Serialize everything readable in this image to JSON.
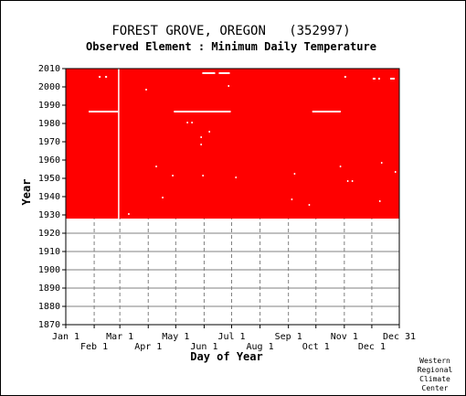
{
  "colors": {
    "record": "#ff0000",
    "missing": "#ffffff",
    "grid": "#808080",
    "background": "#ffffff"
  },
  "credit_lines": [
    "Western",
    "Regional",
    "Climate",
    "Center"
  ],
  "chart_data": {
    "type": "heatmap",
    "title": "FOREST GROVE, OREGON   (352997)",
    "subtitle": "Observed Element : Minimum Daily Temperature",
    "xlabel": "Day of Year",
    "ylabel": "Year",
    "xlim": [
      "Jan 1",
      "Dec 31"
    ],
    "ylim": [
      1870,
      2010
    ],
    "y_ticks": [
      1870,
      1880,
      1890,
      1900,
      1910,
      1920,
      1930,
      1940,
      1950,
      1960,
      1970,
      1980,
      1990,
      2000,
      2010
    ],
    "x_ticks_upper": [
      {
        "label": "Jan 1",
        "day": 1
      },
      {
        "label": "Mar 1",
        "day": 60
      },
      {
        "label": "May 1",
        "day": 121
      },
      {
        "label": "Jul 1",
        "day": 182
      },
      {
        "label": "Sep 1",
        "day": 244
      },
      {
        "label": "Nov 1",
        "day": 305
      },
      {
        "label": "Dec 31",
        "day": 365
      }
    ],
    "x_ticks_lower": [
      {
        "label": "Feb 1",
        "day": 32
      },
      {
        "label": "Apr 1",
        "day": 91
      },
      {
        "label": "Jun 1",
        "day": 152
      },
      {
        "label": "Aug 1",
        "day": 213
      },
      {
        "label": "Oct 1",
        "day": 274
      },
      {
        "label": "Dec 1",
        "day": 335
      }
    ],
    "data_coverage": {
      "year_start": 1928,
      "year_end": 2010,
      "day_start": 1,
      "day_end": 365
    },
    "missing_periods": [
      {
        "day_start": 58,
        "day_end": 59,
        "year_start": 1928,
        "year_end": 2010
      },
      {
        "day_start": 26,
        "day_end": 58,
        "year_start": 1986,
        "year_end": 1987
      },
      {
        "day_start": 119,
        "day_end": 181,
        "year_start": 1986,
        "year_end": 1987
      },
      {
        "day_start": 270,
        "day_end": 301,
        "year_start": 1986,
        "year_end": 1987
      },
      {
        "day_start": 150,
        "day_end": 164,
        "year_start": 2007,
        "year_end": 2008
      },
      {
        "day_start": 168,
        "day_end": 180,
        "year_start": 2007,
        "year_end": 2008
      },
      {
        "day_start": 37,
        "day_end": 39,
        "year_start": 2005,
        "year_end": 2006
      },
      {
        "day_start": 44,
        "day_end": 46,
        "year_start": 2005,
        "year_end": 2006
      },
      {
        "day_start": 305,
        "day_end": 307,
        "year_start": 2005,
        "year_end": 2006
      },
      {
        "day_start": 336,
        "day_end": 339,
        "year_start": 2004,
        "year_end": 2005
      },
      {
        "day_start": 342,
        "day_end": 344,
        "year_start": 2004,
        "year_end": 2005
      },
      {
        "day_start": 355,
        "day_end": 360,
        "year_start": 2004,
        "year_end": 2005
      },
      {
        "day_start": 178,
        "day_end": 179,
        "year_start": 2000,
        "year_end": 2001
      },
      {
        "day_start": 88,
        "day_end": 89,
        "year_start": 1998,
        "year_end": 1999
      },
      {
        "day_start": 133,
        "day_end": 134,
        "year_start": 1980,
        "year_end": 1981
      },
      {
        "day_start": 138,
        "day_end": 139,
        "year_start": 1980,
        "year_end": 1981
      },
      {
        "day_start": 157,
        "day_end": 158,
        "year_start": 1975,
        "year_end": 1976
      },
      {
        "day_start": 148,
        "day_end": 149,
        "year_start": 1972,
        "year_end": 1973
      },
      {
        "day_start": 148,
        "day_end": 149,
        "year_start": 1968,
        "year_end": 1969
      },
      {
        "day_start": 99,
        "day_end": 100,
        "year_start": 1956,
        "year_end": 1957
      },
      {
        "day_start": 300,
        "day_end": 301,
        "year_start": 1956,
        "year_end": 1957
      },
      {
        "day_start": 345,
        "day_end": 346,
        "year_start": 1958,
        "year_end": 1959
      },
      {
        "day_start": 360,
        "day_end": 361,
        "year_start": 1953,
        "year_end": 1954
      },
      {
        "day_start": 250,
        "day_end": 251,
        "year_start": 1952,
        "year_end": 1953
      },
      {
        "day_start": 150,
        "day_end": 151,
        "year_start": 1951,
        "year_end": 1952
      },
      {
        "day_start": 117,
        "day_end": 118,
        "year_start": 1951,
        "year_end": 1952
      },
      {
        "day_start": 186,
        "day_end": 187,
        "year_start": 1950,
        "year_end": 1951
      },
      {
        "day_start": 308,
        "day_end": 309,
        "year_start": 1948,
        "year_end": 1949
      },
      {
        "day_start": 313,
        "day_end": 314,
        "year_start": 1948,
        "year_end": 1949
      },
      {
        "day_start": 106,
        "day_end": 107,
        "year_start": 1939,
        "year_end": 1940
      },
      {
        "day_start": 247,
        "day_end": 248,
        "year_start": 1938,
        "year_end": 1939
      },
      {
        "day_start": 343,
        "day_end": 344,
        "year_start": 1937,
        "year_end": 1938
      },
      {
        "day_start": 266,
        "day_end": 267,
        "year_start": 1935,
        "year_end": 1936
      },
      {
        "day_start": 69,
        "day_end": 70,
        "year_start": 1930,
        "year_end": 1931
      }
    ],
    "grid": true
  }
}
